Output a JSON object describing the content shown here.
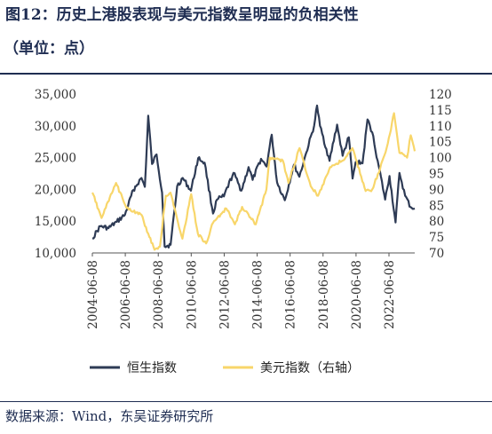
{
  "title": "图12：历史上港股表现与美元指数呈明显的负相关性",
  "subtitle": "（单位：点）",
  "source": "数据来源：Wind，东吴证券研究所",
  "chart_data": {
    "type": "line",
    "xlim": [
      "2004-06-08",
      "2023-12-31"
    ],
    "x_ticks": [
      "2004-06-08",
      "2006-06-08",
      "2008-06-08",
      "2010-06-08",
      "2012-06-08",
      "2014-06-08",
      "2016-06-08",
      "2018-06-08",
      "2020-06-08",
      "2022-06-08"
    ],
    "y_left": {
      "min": 10000,
      "max": 35000,
      "ticks": [
        10000,
        15000,
        20000,
        25000,
        30000,
        35000
      ],
      "tick_labels": [
        "10,000",
        "15,000",
        "20,000",
        "25,000",
        "30,000",
        "35,000"
      ]
    },
    "y_right": {
      "min": 70,
      "max": 120,
      "ticks": [
        70,
        75,
        80,
        85,
        90,
        95,
        100,
        105,
        110,
        115,
        120
      ],
      "tick_labels": [
        "70",
        "75",
        "80",
        "85",
        "90",
        "95",
        "100",
        "105",
        "110",
        "115",
        "120"
      ]
    },
    "legend_position": "bottom",
    "series": [
      {
        "name": "恒生指数",
        "axis": "left",
        "color": "#2e3b55",
        "points": [
          [
            "2004-06-08",
            12300
          ],
          [
            "2004-12-01",
            14200
          ],
          [
            "2005-06-01",
            13900
          ],
          [
            "2005-12-01",
            14900
          ],
          [
            "2006-06-01",
            16000
          ],
          [
            "2006-12-01",
            19900
          ],
          [
            "2007-06-01",
            21800
          ],
          [
            "2007-08-15",
            20400
          ],
          [
            "2007-10-30",
            31600
          ],
          [
            "2008-01-22",
            24000
          ],
          [
            "2008-05-01",
            25500
          ],
          [
            "2008-09-01",
            19500
          ],
          [
            "2008-10-27",
            11000
          ],
          [
            "2009-03-09",
            11300
          ],
          [
            "2009-08-01",
            20500
          ],
          [
            "2009-12-01",
            21800
          ],
          [
            "2010-06-01",
            19800
          ],
          [
            "2010-11-08",
            24900
          ],
          [
            "2011-04-01",
            24200
          ],
          [
            "2011-10-04",
            16200
          ],
          [
            "2012-01-01",
            18400
          ],
          [
            "2012-06-01",
            18900
          ],
          [
            "2012-12-31",
            22600
          ],
          [
            "2013-06-24",
            19800
          ],
          [
            "2013-12-01",
            23500
          ],
          [
            "2014-03-01",
            21500
          ],
          [
            "2014-09-01",
            24800
          ],
          [
            "2015-01-01",
            23600
          ],
          [
            "2015-04-28",
            28600
          ],
          [
            "2015-08-24",
            21100
          ],
          [
            "2016-02-12",
            18300
          ],
          [
            "2016-09-01",
            23900
          ],
          [
            "2016-12-30",
            22000
          ],
          [
            "2017-06-01",
            25800
          ],
          [
            "2017-11-22",
            30000
          ],
          [
            "2018-01-26",
            33200
          ],
          [
            "2018-04-01",
            30000
          ],
          [
            "2018-10-30",
            24500
          ],
          [
            "2019-04-15",
            30200
          ],
          [
            "2019-08-15",
            25300
          ],
          [
            "2019-12-31",
            28200
          ],
          [
            "2020-03-23",
            21700
          ],
          [
            "2020-06-01",
            24300
          ],
          [
            "2020-10-30",
            24100
          ],
          [
            "2021-02-17",
            31000
          ],
          [
            "2021-06-01",
            29000
          ],
          [
            "2021-10-01",
            24500
          ],
          [
            "2022-03-15",
            18400
          ],
          [
            "2022-06-20",
            22100
          ],
          [
            "2022-10-31",
            14800
          ],
          [
            "2023-01-27",
            22600
          ],
          [
            "2023-06-01",
            19000
          ],
          [
            "2023-10-01",
            17200
          ],
          [
            "2023-12-31",
            17000
          ]
        ]
      },
      {
        "name": "美元指数（右轴）",
        "axis": "right",
        "color": "#f8d66a",
        "points": [
          [
            "2004-06-08",
            89
          ],
          [
            "2004-12-30",
            81
          ],
          [
            "2005-11-15",
            92
          ],
          [
            "2006-06-08",
            85
          ],
          [
            "2006-12-01",
            83
          ],
          [
            "2007-06-01",
            82
          ],
          [
            "2007-11-23",
            75
          ],
          [
            "2008-03-17",
            71
          ],
          [
            "2008-07-15",
            72
          ],
          [
            "2008-11-21",
            88
          ],
          [
            "2009-03-04",
            89
          ],
          [
            "2009-11-25",
            74.5
          ],
          [
            "2010-06-07",
            88.5
          ],
          [
            "2010-11-04",
            76
          ],
          [
            "2011-05-04",
            73
          ],
          [
            "2011-10-04",
            79.5
          ],
          [
            "2012-07-24",
            84
          ],
          [
            "2013-02-01",
            79
          ],
          [
            "2013-07-09",
            84.5
          ],
          [
            "2014-05-08",
            79
          ],
          [
            "2014-12-31",
            90
          ],
          [
            "2015-03-13",
            100
          ],
          [
            "2016-01-01",
            99
          ],
          [
            "2016-05-02",
            92
          ],
          [
            "2017-01-03",
            103
          ],
          [
            "2017-09-08",
            91
          ],
          [
            "2018-02-16",
            88
          ],
          [
            "2018-11-12",
            97
          ],
          [
            "2019-09-30",
            99.5
          ],
          [
            "2020-03-20",
            103
          ],
          [
            "2021-01-06",
            89.5
          ],
          [
            "2021-06-01",
            90
          ],
          [
            "2021-11-24",
            96.5
          ],
          [
            "2022-05-13",
            104.5
          ],
          [
            "2022-09-28",
            114
          ],
          [
            "2023-01-26",
            101.5
          ],
          [
            "2023-07-14",
            100
          ],
          [
            "2023-10-03",
            107
          ],
          [
            "2023-12-31",
            102
          ]
        ]
      }
    ]
  }
}
